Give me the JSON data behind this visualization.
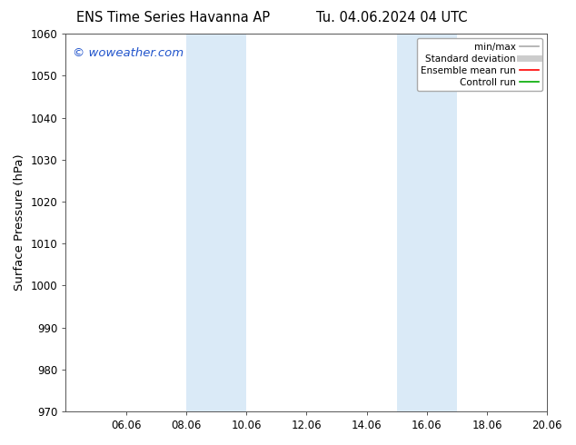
{
  "title_left": "ENS Time Series Havanna AP",
  "title_right": "Tu. 04.06.2024 04 UTC",
  "ylabel": "Surface Pressure (hPa)",
  "ylim": [
    970,
    1060
  ],
  "yticks": [
    970,
    980,
    990,
    1000,
    1010,
    1020,
    1030,
    1040,
    1050,
    1060
  ],
  "xlim": [
    0,
    16
  ],
  "xtick_positions": [
    2,
    4,
    6,
    8,
    10,
    12,
    14,
    16
  ],
  "xtick_labels": [
    "06.06",
    "08.06",
    "10.06",
    "12.06",
    "14.06",
    "16.06",
    "18.06",
    "20.06"
  ],
  "shaded_bands": [
    {
      "x_start": 4,
      "x_end": 6
    },
    {
      "x_start": 11,
      "x_end": 13
    }
  ],
  "shade_color": "#daeaf7",
  "watermark_text": "© woweather.com",
  "watermark_color": "#2255cc",
  "legend_entries": [
    {
      "label": "min/max",
      "color": "#aaaaaa",
      "lw": 1.2
    },
    {
      "label": "Standard deviation",
      "color": "#cccccc",
      "lw": 5
    },
    {
      "label": "Ensemble mean run",
      "color": "#ff0000",
      "lw": 1.2
    },
    {
      "label": "Controll run",
      "color": "#00aa00",
      "lw": 1.2
    }
  ],
  "bg_color": "#ffffff",
  "title_fontsize": 10.5,
  "tick_fontsize": 8.5,
  "label_fontsize": 9.5,
  "watermark_fontsize": 9.5,
  "legend_fontsize": 7.5
}
